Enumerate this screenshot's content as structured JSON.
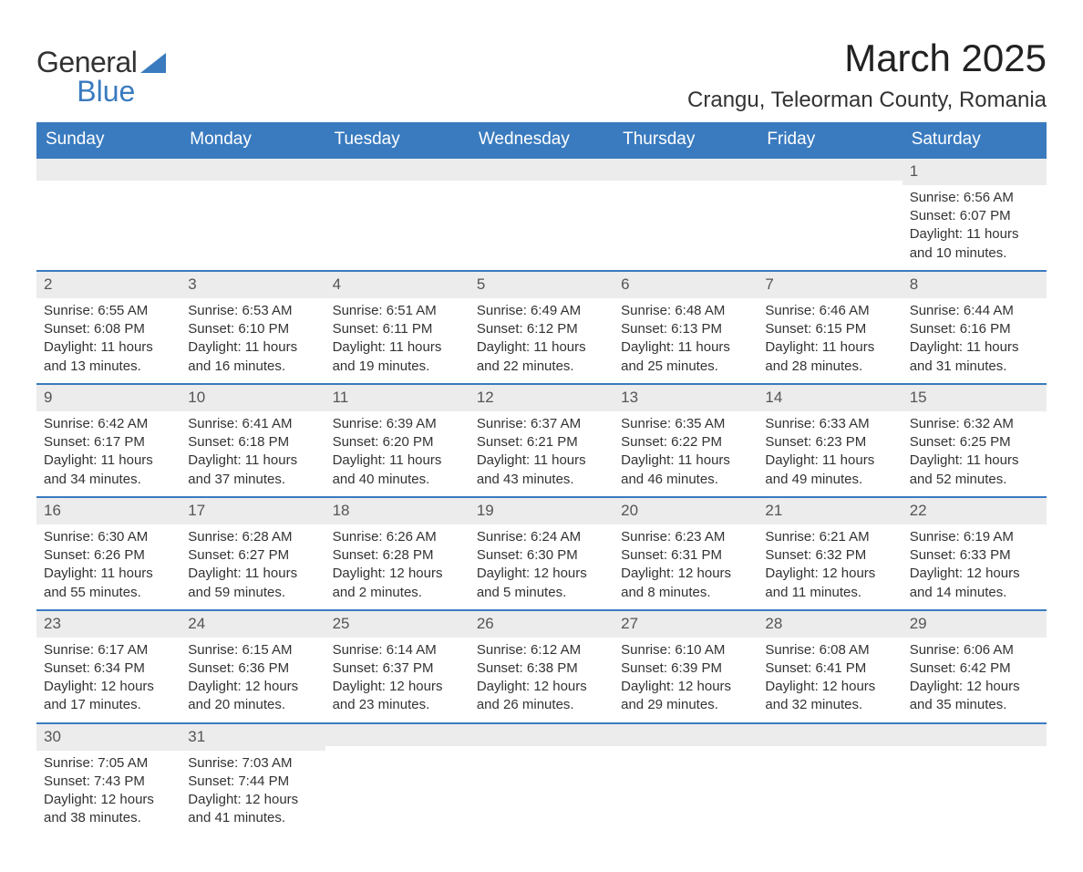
{
  "logo": {
    "line1": "General",
    "line2": "Blue"
  },
  "title": "March 2025",
  "location": "Crangu, Teleorman County, Romania",
  "weekdays": [
    "Sunday",
    "Monday",
    "Tuesday",
    "Wednesday",
    "Thursday",
    "Friday",
    "Saturday"
  ],
  "colors": {
    "header_bg": "#3a7bbf",
    "header_text": "#ffffff",
    "daynum_bg": "#ececec",
    "border_top": "#3a7bbf",
    "body_text": "#333333"
  },
  "weeks": [
    [
      {
        "empty": true
      },
      {
        "empty": true
      },
      {
        "empty": true
      },
      {
        "empty": true
      },
      {
        "empty": true
      },
      {
        "empty": true
      },
      {
        "day": "1",
        "sunrise": "Sunrise: 6:56 AM",
        "sunset": "Sunset: 6:07 PM",
        "daylight1": "Daylight: 11 hours",
        "daylight2": "and 10 minutes."
      }
    ],
    [
      {
        "day": "2",
        "sunrise": "Sunrise: 6:55 AM",
        "sunset": "Sunset: 6:08 PM",
        "daylight1": "Daylight: 11 hours",
        "daylight2": "and 13 minutes."
      },
      {
        "day": "3",
        "sunrise": "Sunrise: 6:53 AM",
        "sunset": "Sunset: 6:10 PM",
        "daylight1": "Daylight: 11 hours",
        "daylight2": "and 16 minutes."
      },
      {
        "day": "4",
        "sunrise": "Sunrise: 6:51 AM",
        "sunset": "Sunset: 6:11 PM",
        "daylight1": "Daylight: 11 hours",
        "daylight2": "and 19 minutes."
      },
      {
        "day": "5",
        "sunrise": "Sunrise: 6:49 AM",
        "sunset": "Sunset: 6:12 PM",
        "daylight1": "Daylight: 11 hours",
        "daylight2": "and 22 minutes."
      },
      {
        "day": "6",
        "sunrise": "Sunrise: 6:48 AM",
        "sunset": "Sunset: 6:13 PM",
        "daylight1": "Daylight: 11 hours",
        "daylight2": "and 25 minutes."
      },
      {
        "day": "7",
        "sunrise": "Sunrise: 6:46 AM",
        "sunset": "Sunset: 6:15 PM",
        "daylight1": "Daylight: 11 hours",
        "daylight2": "and 28 minutes."
      },
      {
        "day": "8",
        "sunrise": "Sunrise: 6:44 AM",
        "sunset": "Sunset: 6:16 PM",
        "daylight1": "Daylight: 11 hours",
        "daylight2": "and 31 minutes."
      }
    ],
    [
      {
        "day": "9",
        "sunrise": "Sunrise: 6:42 AM",
        "sunset": "Sunset: 6:17 PM",
        "daylight1": "Daylight: 11 hours",
        "daylight2": "and 34 minutes."
      },
      {
        "day": "10",
        "sunrise": "Sunrise: 6:41 AM",
        "sunset": "Sunset: 6:18 PM",
        "daylight1": "Daylight: 11 hours",
        "daylight2": "and 37 minutes."
      },
      {
        "day": "11",
        "sunrise": "Sunrise: 6:39 AM",
        "sunset": "Sunset: 6:20 PM",
        "daylight1": "Daylight: 11 hours",
        "daylight2": "and 40 minutes."
      },
      {
        "day": "12",
        "sunrise": "Sunrise: 6:37 AM",
        "sunset": "Sunset: 6:21 PM",
        "daylight1": "Daylight: 11 hours",
        "daylight2": "and 43 minutes."
      },
      {
        "day": "13",
        "sunrise": "Sunrise: 6:35 AM",
        "sunset": "Sunset: 6:22 PM",
        "daylight1": "Daylight: 11 hours",
        "daylight2": "and 46 minutes."
      },
      {
        "day": "14",
        "sunrise": "Sunrise: 6:33 AM",
        "sunset": "Sunset: 6:23 PM",
        "daylight1": "Daylight: 11 hours",
        "daylight2": "and 49 minutes."
      },
      {
        "day": "15",
        "sunrise": "Sunrise: 6:32 AM",
        "sunset": "Sunset: 6:25 PM",
        "daylight1": "Daylight: 11 hours",
        "daylight2": "and 52 minutes."
      }
    ],
    [
      {
        "day": "16",
        "sunrise": "Sunrise: 6:30 AM",
        "sunset": "Sunset: 6:26 PM",
        "daylight1": "Daylight: 11 hours",
        "daylight2": "and 55 minutes."
      },
      {
        "day": "17",
        "sunrise": "Sunrise: 6:28 AM",
        "sunset": "Sunset: 6:27 PM",
        "daylight1": "Daylight: 11 hours",
        "daylight2": "and 59 minutes."
      },
      {
        "day": "18",
        "sunrise": "Sunrise: 6:26 AM",
        "sunset": "Sunset: 6:28 PM",
        "daylight1": "Daylight: 12 hours",
        "daylight2": "and 2 minutes."
      },
      {
        "day": "19",
        "sunrise": "Sunrise: 6:24 AM",
        "sunset": "Sunset: 6:30 PM",
        "daylight1": "Daylight: 12 hours",
        "daylight2": "and 5 minutes."
      },
      {
        "day": "20",
        "sunrise": "Sunrise: 6:23 AM",
        "sunset": "Sunset: 6:31 PM",
        "daylight1": "Daylight: 12 hours",
        "daylight2": "and 8 minutes."
      },
      {
        "day": "21",
        "sunrise": "Sunrise: 6:21 AM",
        "sunset": "Sunset: 6:32 PM",
        "daylight1": "Daylight: 12 hours",
        "daylight2": "and 11 minutes."
      },
      {
        "day": "22",
        "sunrise": "Sunrise: 6:19 AM",
        "sunset": "Sunset: 6:33 PM",
        "daylight1": "Daylight: 12 hours",
        "daylight2": "and 14 minutes."
      }
    ],
    [
      {
        "day": "23",
        "sunrise": "Sunrise: 6:17 AM",
        "sunset": "Sunset: 6:34 PM",
        "daylight1": "Daylight: 12 hours",
        "daylight2": "and 17 minutes."
      },
      {
        "day": "24",
        "sunrise": "Sunrise: 6:15 AM",
        "sunset": "Sunset: 6:36 PM",
        "daylight1": "Daylight: 12 hours",
        "daylight2": "and 20 minutes."
      },
      {
        "day": "25",
        "sunrise": "Sunrise: 6:14 AM",
        "sunset": "Sunset: 6:37 PM",
        "daylight1": "Daylight: 12 hours",
        "daylight2": "and 23 minutes."
      },
      {
        "day": "26",
        "sunrise": "Sunrise: 6:12 AM",
        "sunset": "Sunset: 6:38 PM",
        "daylight1": "Daylight: 12 hours",
        "daylight2": "and 26 minutes."
      },
      {
        "day": "27",
        "sunrise": "Sunrise: 6:10 AM",
        "sunset": "Sunset: 6:39 PM",
        "daylight1": "Daylight: 12 hours",
        "daylight2": "and 29 minutes."
      },
      {
        "day": "28",
        "sunrise": "Sunrise: 6:08 AM",
        "sunset": "Sunset: 6:41 PM",
        "daylight1": "Daylight: 12 hours",
        "daylight2": "and 32 minutes."
      },
      {
        "day": "29",
        "sunrise": "Sunrise: 6:06 AM",
        "sunset": "Sunset: 6:42 PM",
        "daylight1": "Daylight: 12 hours",
        "daylight2": "and 35 minutes."
      }
    ],
    [
      {
        "day": "30",
        "sunrise": "Sunrise: 7:05 AM",
        "sunset": "Sunset: 7:43 PM",
        "daylight1": "Daylight: 12 hours",
        "daylight2": "and 38 minutes."
      },
      {
        "day": "31",
        "sunrise": "Sunrise: 7:03 AM",
        "sunset": "Sunset: 7:44 PM",
        "daylight1": "Daylight: 12 hours",
        "daylight2": "and 41 minutes."
      },
      {
        "empty": true
      },
      {
        "empty": true
      },
      {
        "empty": true
      },
      {
        "empty": true
      },
      {
        "empty": true
      }
    ]
  ]
}
